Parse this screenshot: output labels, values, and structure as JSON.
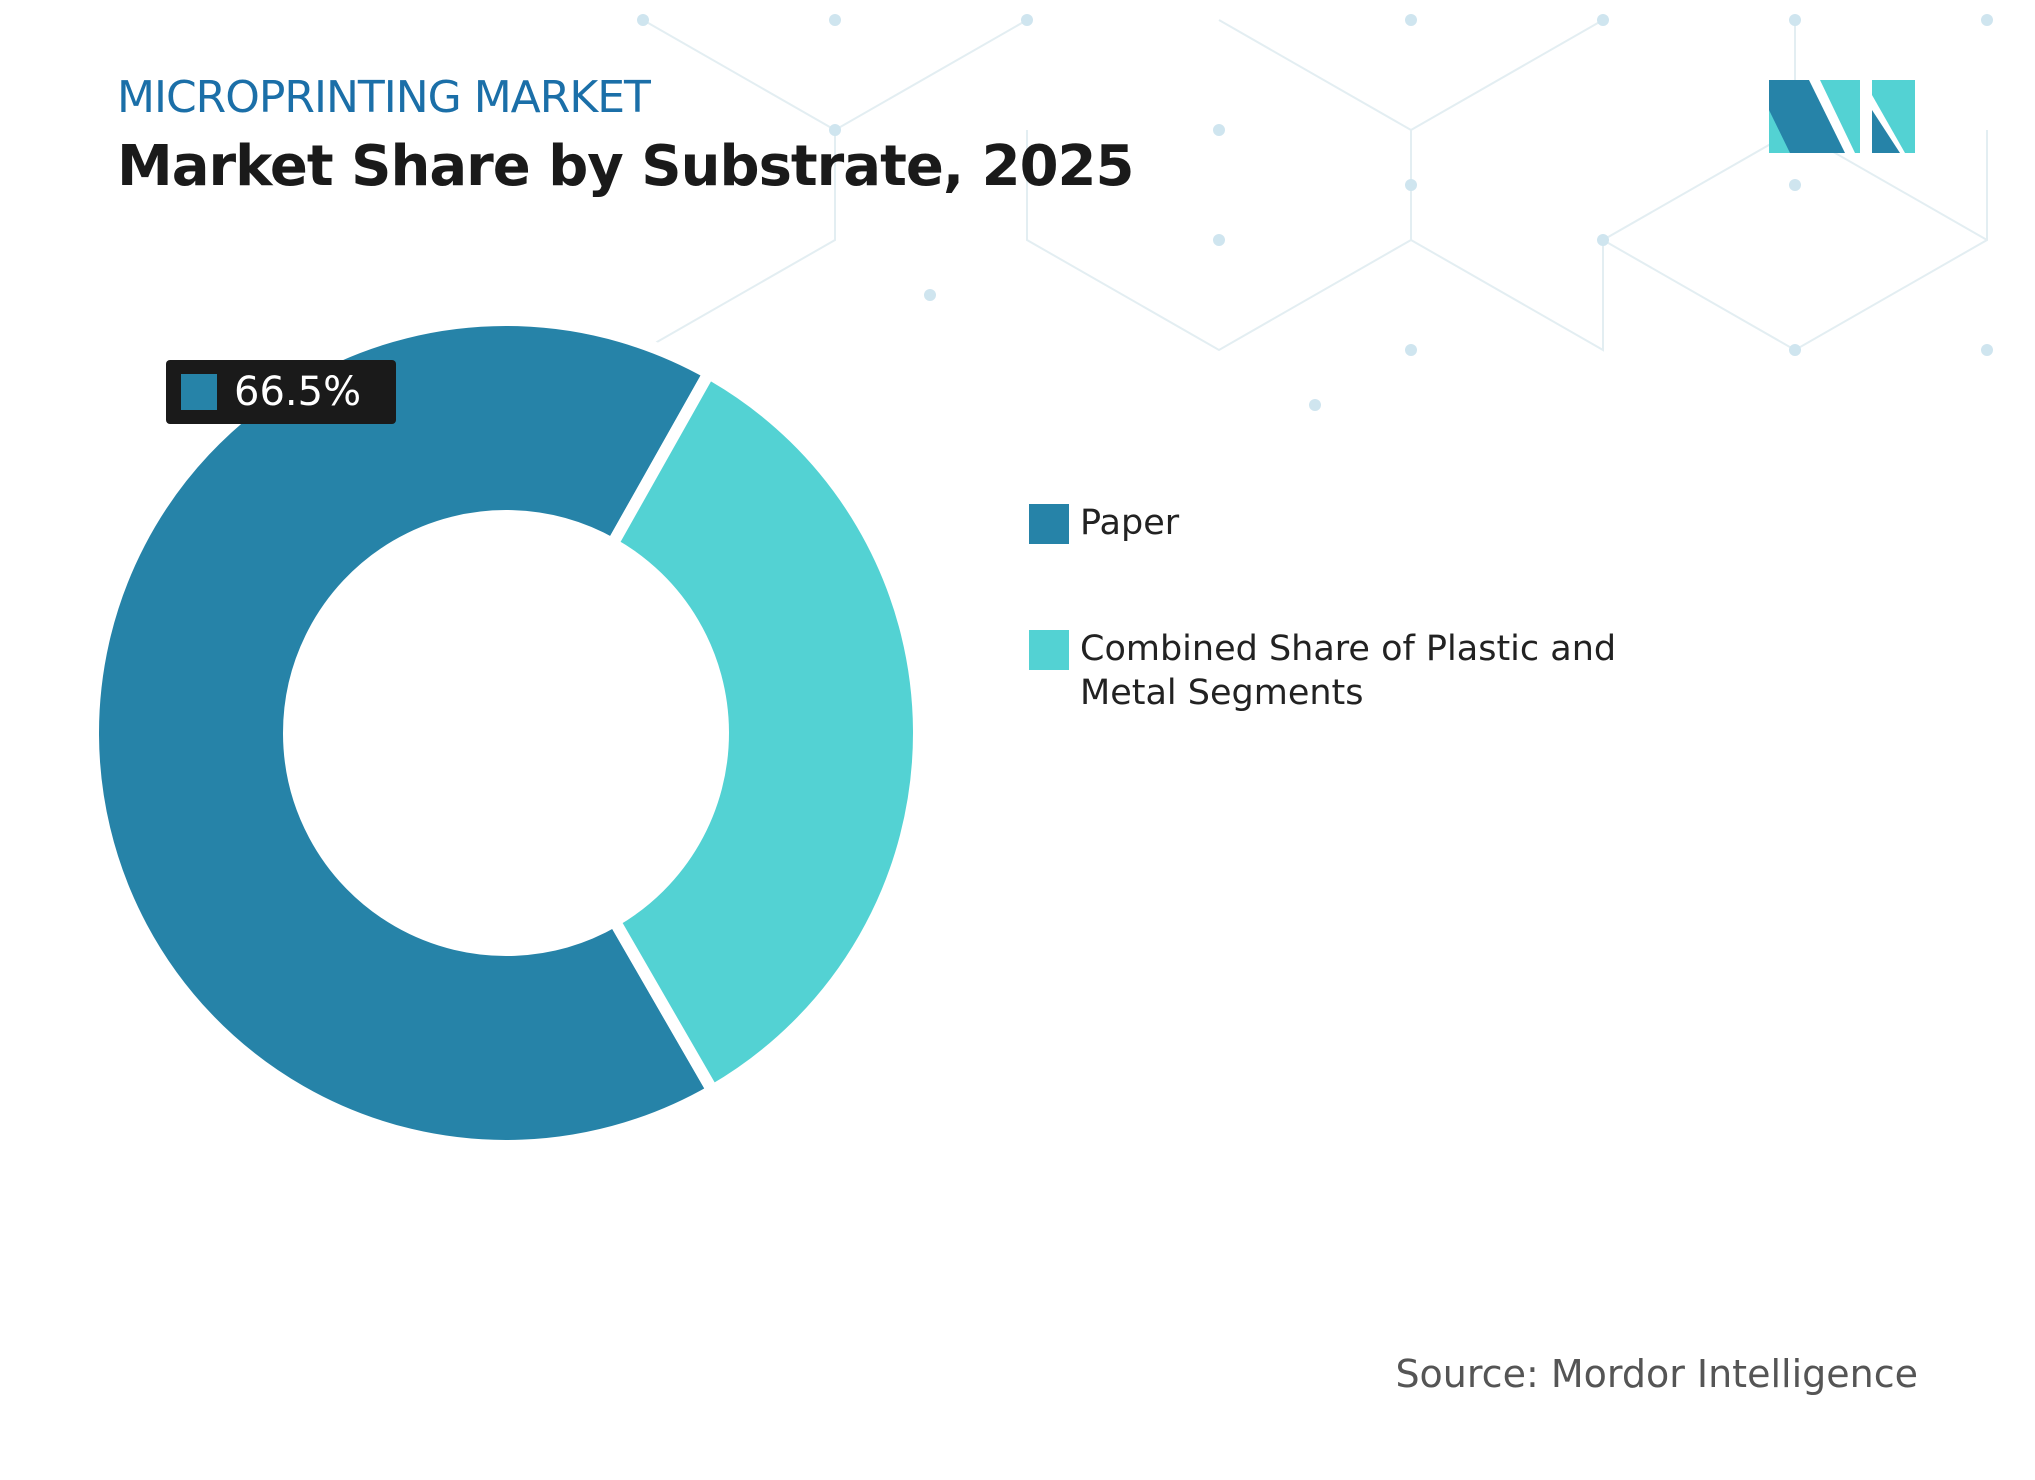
{
  "chart_data": {
    "type": "pie",
    "subtitle": "MICROPRINTING MARKET",
    "title": "Market Share by Substrate, 2025",
    "series": [
      {
        "name": "Paper",
        "color": "#2683a8"
      },
      {
        "name": "Combined Share of Plastic and Metal Segments",
        "color": "#53d2d3"
      }
    ],
    "values": [
      66.5,
      33.5
    ],
    "value_labels": [
      "66.5%",
      null
    ],
    "source": "Source: Mordor Intelligence"
  }
}
